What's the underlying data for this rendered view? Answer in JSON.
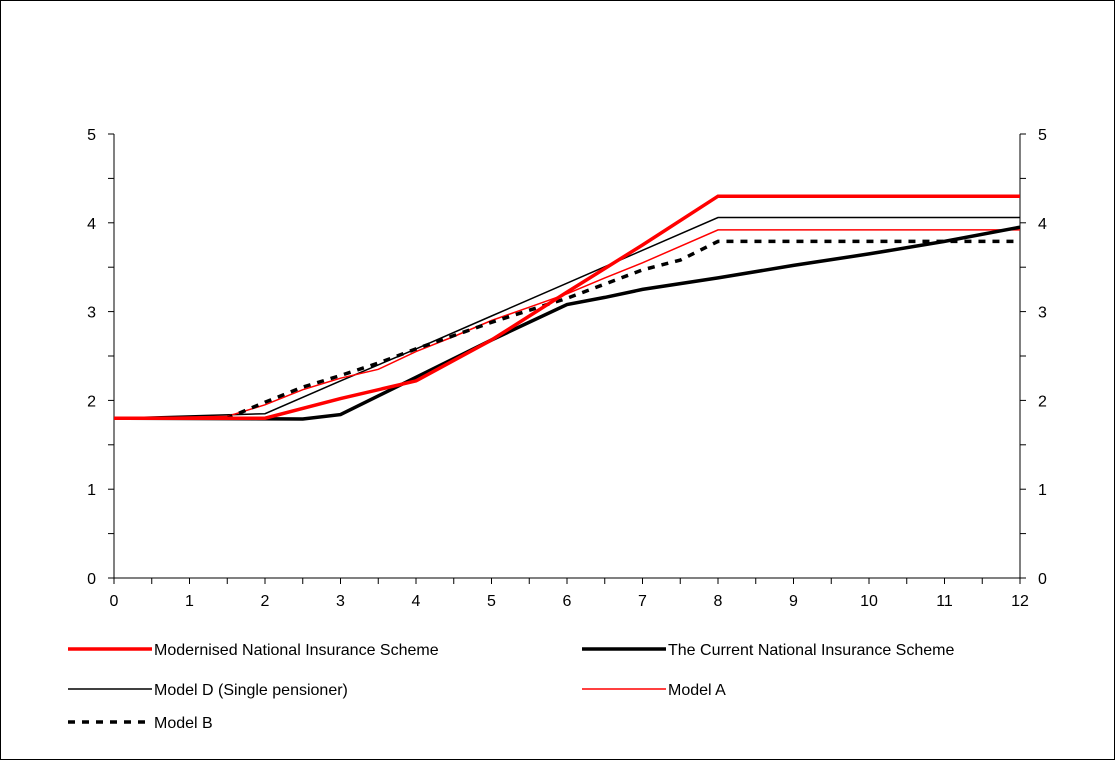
{
  "chart_data": {
    "type": "line",
    "title": "",
    "xlabel": "",
    "ylabel": "",
    "xlim": [
      0,
      12
    ],
    "ylim": [
      0,
      5
    ],
    "x_ticks": [
      "0",
      "1",
      "2",
      "3",
      "4",
      "5",
      "6",
      "7",
      "8",
      "9",
      "10",
      "11",
      "12"
    ],
    "y_ticks": [
      "0",
      "1",
      "2",
      "3",
      "4",
      "5"
    ],
    "y_right_ticks": [
      "0",
      "1",
      "2",
      "3",
      "4",
      "5"
    ],
    "grid": false,
    "legend_position": "bottom",
    "series": [
      {
        "name": "Modernised National Insurance Scheme",
        "color": "#ff0000",
        "style": "thick",
        "points": [
          [
            0,
            1.8
          ],
          [
            2,
            1.8
          ],
          [
            3,
            2.02
          ],
          [
            4,
            2.22
          ],
          [
            5,
            2.68
          ],
          [
            6,
            3.22
          ],
          [
            7,
            3.75
          ],
          [
            8,
            4.3
          ],
          [
            12,
            4.3
          ]
        ]
      },
      {
        "name": "The Current National Insurance Scheme",
        "color": "#000000",
        "style": "thick",
        "points": [
          [
            0,
            1.8
          ],
          [
            2.5,
            1.79
          ],
          [
            3,
            1.84
          ],
          [
            4,
            2.26
          ],
          [
            5,
            2.68
          ],
          [
            6,
            3.08
          ],
          [
            6.5,
            3.16
          ],
          [
            7,
            3.25
          ],
          [
            8,
            3.38
          ],
          [
            9,
            3.52
          ],
          [
            10,
            3.65
          ],
          [
            11,
            3.79
          ],
          [
            12,
            3.95
          ]
        ]
      },
      {
        "name": "Model D (Single pensioner)",
        "color": "#000000",
        "style": "thin",
        "points": [
          [
            0,
            1.8
          ],
          [
            2,
            1.85
          ],
          [
            3,
            2.22
          ],
          [
            4,
            2.58
          ],
          [
            5,
            2.95
          ],
          [
            6,
            3.32
          ],
          [
            7,
            3.69
          ],
          [
            8,
            4.06
          ],
          [
            12,
            4.06
          ]
        ]
      },
      {
        "name": "Model A",
        "color": "#ff0000",
        "style": "thin",
        "points": [
          [
            0,
            1.8
          ],
          [
            1.5,
            1.82
          ],
          [
            2,
            1.95
          ],
          [
            2.5,
            2.12
          ],
          [
            3,
            2.25
          ],
          [
            3.5,
            2.35
          ],
          [
            4,
            2.55
          ],
          [
            4.5,
            2.72
          ],
          [
            5,
            2.9
          ],
          [
            5.5,
            3.05
          ],
          [
            6,
            3.2
          ],
          [
            6.5,
            3.38
          ],
          [
            7,
            3.55
          ],
          [
            8,
            3.92
          ],
          [
            12,
            3.92
          ]
        ]
      },
      {
        "name": "Model B",
        "color": "#000000",
        "style": "dashed",
        "points": [
          [
            0,
            1.8
          ],
          [
            1.5,
            1.8
          ],
          [
            2,
            1.98
          ],
          [
            2.5,
            2.15
          ],
          [
            3,
            2.28
          ],
          [
            3.5,
            2.42
          ],
          [
            4,
            2.58
          ],
          [
            5,
            2.88
          ],
          [
            6,
            3.15
          ],
          [
            7,
            3.47
          ],
          [
            7.5,
            3.58
          ],
          [
            8,
            3.79
          ],
          [
            12,
            3.79
          ]
        ]
      }
    ]
  }
}
